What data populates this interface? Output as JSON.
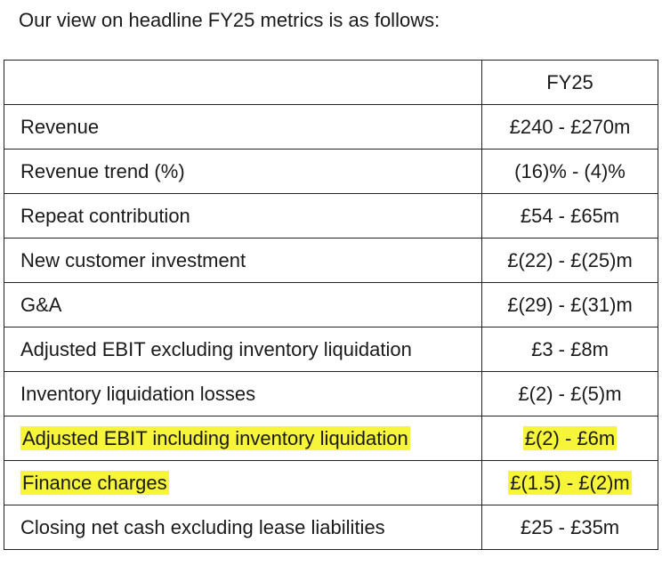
{
  "intro": "Our view on headline FY25 metrics is as follows:",
  "table": {
    "header": {
      "label": "",
      "value": "FY25"
    },
    "rows": [
      {
        "label": "Revenue",
        "value": "£240 - £270m",
        "highlight": false
      },
      {
        "label": "Revenue trend (%)",
        "value": "(16)% - (4)%",
        "highlight": false
      },
      {
        "label": "Repeat contribution",
        "value": "£54 - £65m",
        "highlight": false
      },
      {
        "label": "New customer investment",
        "value": "£(22) - £(25)m",
        "highlight": false
      },
      {
        "label": "G&A",
        "value": "£(29) - £(31)m",
        "highlight": false
      },
      {
        "label": "Adjusted EBIT excluding inventory liquidation",
        "value": "£3 - £8m",
        "highlight": false
      },
      {
        "label": "Inventory liquidation losses",
        "value": "£(2) - £(5)m",
        "highlight": false
      },
      {
        "label": "Adjusted EBIT including inventory liquidation",
        "value": "£(2) - £6m",
        "highlight": true
      },
      {
        "label": "Finance charges",
        "value": "£(1.5) - £(2)m",
        "highlight": true
      },
      {
        "label": "Closing net cash excluding lease liabilities",
        "value": "£25 - £35m",
        "highlight": false
      }
    ]
  },
  "colors": {
    "highlight": "#f6f53a",
    "border": "#222222",
    "text": "#1a1a1a"
  }
}
